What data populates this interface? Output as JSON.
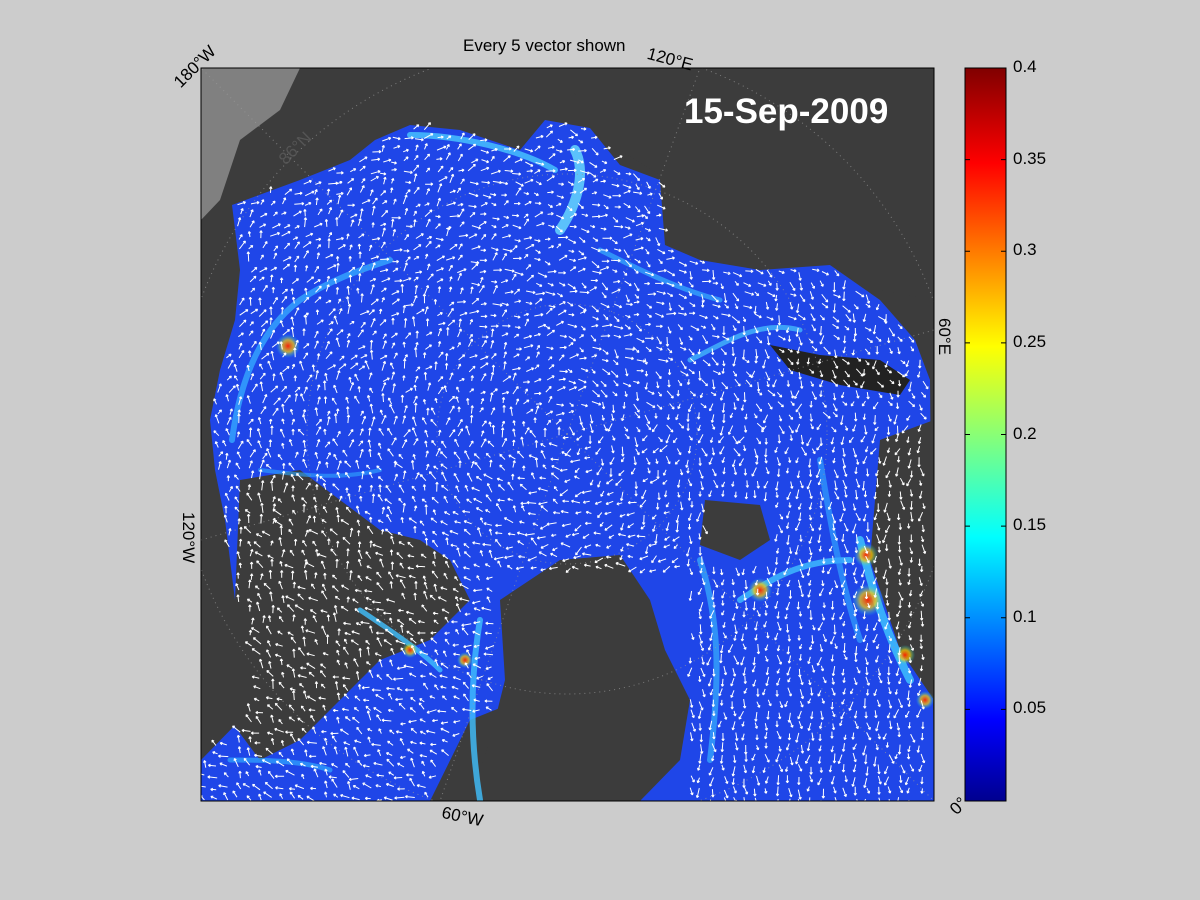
{
  "title": "Every 5 vector shown",
  "date_label": "15-Sep-2009",
  "map_labels": {
    "lon_180w": "180°W",
    "lon_120e": "120°E",
    "lon_60e": "60°E",
    "lon_120w": "120°W",
    "lon_60w": "60°W",
    "lon_0": "0°",
    "lat_86n": "86°N"
  },
  "colorbar": {
    "colormap": "jet",
    "min": 0,
    "max": 0.4,
    "ticks": [
      "0.4",
      "0.35",
      "0.3",
      "0.25",
      "0.2",
      "0.15",
      "0.1",
      "0.05"
    ]
  },
  "colors": {
    "figure_background": "#cccccc",
    "land": "#3c3c3c",
    "ice_base": "#1a3be6",
    "vectors": "#ffffff"
  }
}
